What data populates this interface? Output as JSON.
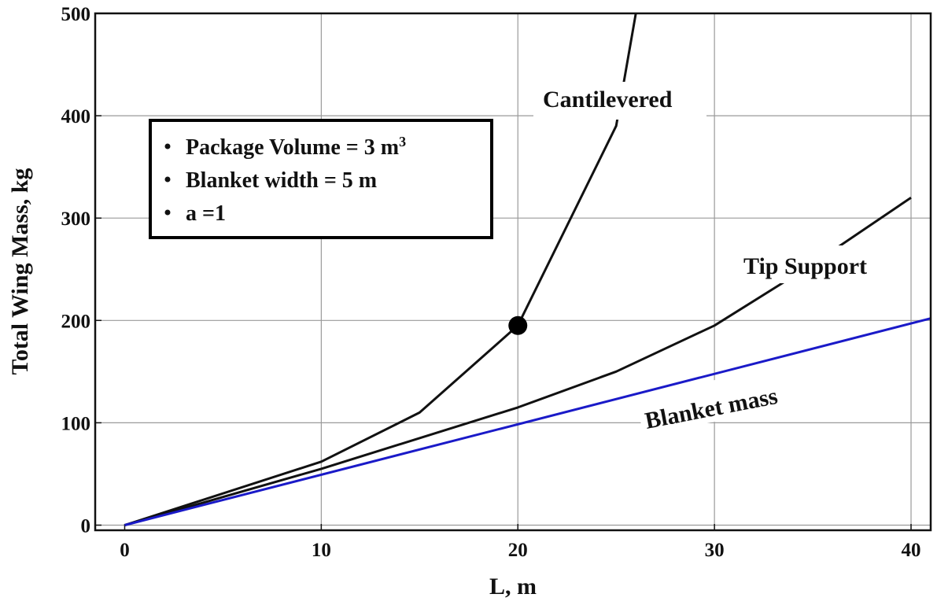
{
  "chart_data": {
    "type": "line",
    "xlabel": "L, m",
    "ylabel": "Total Wing Mass, kg",
    "xlim": [
      -1.5,
      41
    ],
    "ylim": [
      -5,
      500
    ],
    "x_ticks": [
      "0",
      "10",
      "20",
      "30",
      "40"
    ],
    "y_ticks": [
      "0",
      "100",
      "200",
      "300",
      "400",
      "500"
    ],
    "grid": true,
    "series": [
      {
        "name": "Cantilevered",
        "color": "#111111",
        "points": [
          [
            0,
            0
          ],
          [
            10,
            62
          ],
          [
            15,
            110
          ],
          [
            20,
            195
          ],
          [
            25,
            390
          ],
          [
            26,
            500
          ]
        ]
      },
      {
        "name": "Tip Support",
        "color": "#111111",
        "points": [
          [
            0,
            0
          ],
          [
            10,
            55
          ],
          [
            20,
            115
          ],
          [
            25,
            150
          ],
          [
            30,
            195
          ],
          [
            35,
            255
          ],
          [
            40,
            320
          ]
        ]
      },
      {
        "name": "Blanket mass",
        "color": "#1a1ac8",
        "points": [
          [
            0,
            0
          ],
          [
            41,
            202
          ]
        ]
      }
    ],
    "marker": {
      "x": 20,
      "y": 195
    },
    "legend": {
      "items": [
        {
          "pre": "Package Volume = 3 m",
          "sup": "3"
        },
        {
          "pre": "Blanket width = 5 m",
          "sup": ""
        },
        {
          "pre": "a =1",
          "sup": ""
        }
      ]
    }
  }
}
